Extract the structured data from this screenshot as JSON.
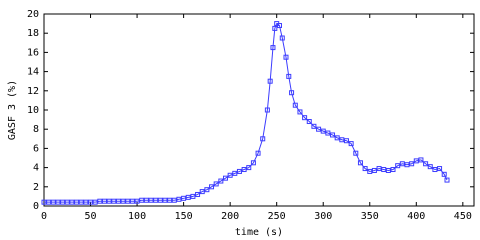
{
  "chart_data": {
    "type": "line",
    "xlabel": "time (s)",
    "ylabel": "GASF 3 (%)",
    "x": [
      0,
      5,
      10,
      15,
      20,
      25,
      30,
      35,
      40,
      45,
      50,
      55,
      60,
      65,
      70,
      75,
      80,
      85,
      90,
      95,
      100,
      105,
      110,
      115,
      120,
      125,
      130,
      135,
      140,
      145,
      150,
      155,
      160,
      165,
      170,
      175,
      180,
      185,
      190,
      195,
      200,
      205,
      210,
      215,
      220,
      225,
      230,
      235,
      240,
      243,
      246,
      248,
      250,
      253,
      256,
      260,
      263,
      266,
      270,
      275,
      280,
      285,
      290,
      295,
      300,
      305,
      310,
      315,
      320,
      325,
      330,
      335,
      340,
      345,
      350,
      355,
      360,
      365,
      370,
      375,
      380,
      385,
      390,
      395,
      400,
      405,
      410,
      415,
      420,
      425,
      430,
      433
    ],
    "series": [
      {
        "name": "GASF 3",
        "color": "#3c3cff",
        "values": [
          0.4,
          0.4,
          0.4,
          0.4,
          0.4,
          0.4,
          0.4,
          0.4,
          0.4,
          0.4,
          0.4,
          0.4,
          0.5,
          0.5,
          0.5,
          0.5,
          0.5,
          0.5,
          0.5,
          0.5,
          0.5,
          0.6,
          0.6,
          0.6,
          0.6,
          0.6,
          0.6,
          0.6,
          0.6,
          0.7,
          0.8,
          0.9,
          1.0,
          1.2,
          1.5,
          1.7,
          2.0,
          2.3,
          2.6,
          2.9,
          3.2,
          3.4,
          3.6,
          3.8,
          4.0,
          4.5,
          5.5,
          7.0,
          10.0,
          13.0,
          16.5,
          18.5,
          19.0,
          18.8,
          17.5,
          15.5,
          13.5,
          11.8,
          10.5,
          9.8,
          9.2,
          8.8,
          8.3,
          8.0,
          7.8,
          7.6,
          7.4,
          7.1,
          6.9,
          6.8,
          6.5,
          5.5,
          4.5,
          3.9,
          3.6,
          3.7,
          3.9,
          3.8,
          3.7,
          3.8,
          4.2,
          4.4,
          4.3,
          4.4,
          4.7,
          4.8,
          4.4,
          4.1,
          3.8,
          3.9,
          3.3,
          2.7
        ]
      }
    ],
    "xlim": [
      0,
      462
    ],
    "ylim": [
      0,
      20
    ],
    "xticks": [
      0,
      50,
      100,
      150,
      200,
      250,
      300,
      350,
      400,
      450
    ],
    "yticks": [
      0,
      2,
      4,
      6,
      8,
      10,
      12,
      14,
      16,
      18,
      20
    ]
  }
}
